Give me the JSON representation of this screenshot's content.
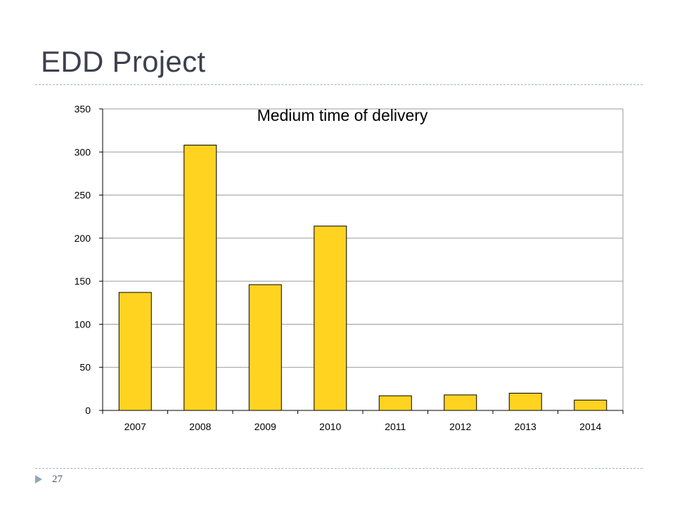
{
  "slide": {
    "title": "EDD Project",
    "page_number": "27"
  },
  "colors": {
    "bar_fill": "#FFD320",
    "bar_stroke": "#000000",
    "gridline": "#9a9a9a",
    "title_text": "#3f3f4f",
    "divider": "#9db7c7"
  },
  "icons": {
    "bullet": "triangle-bullet-icon"
  },
  "chart_data": {
    "type": "bar",
    "title": "Medium time of delivery",
    "xlabel": "",
    "ylabel": "",
    "categories": [
      "2007",
      "2008",
      "2009",
      "2010",
      "2011",
      "2012",
      "2013",
      "2014"
    ],
    "values": [
      137,
      308,
      146,
      214,
      17,
      18,
      20,
      12
    ],
    "ylim": [
      0,
      350
    ],
    "yticks": [
      0,
      50,
      100,
      150,
      200,
      250,
      300,
      350
    ],
    "grid": true,
    "legend": "none"
  }
}
